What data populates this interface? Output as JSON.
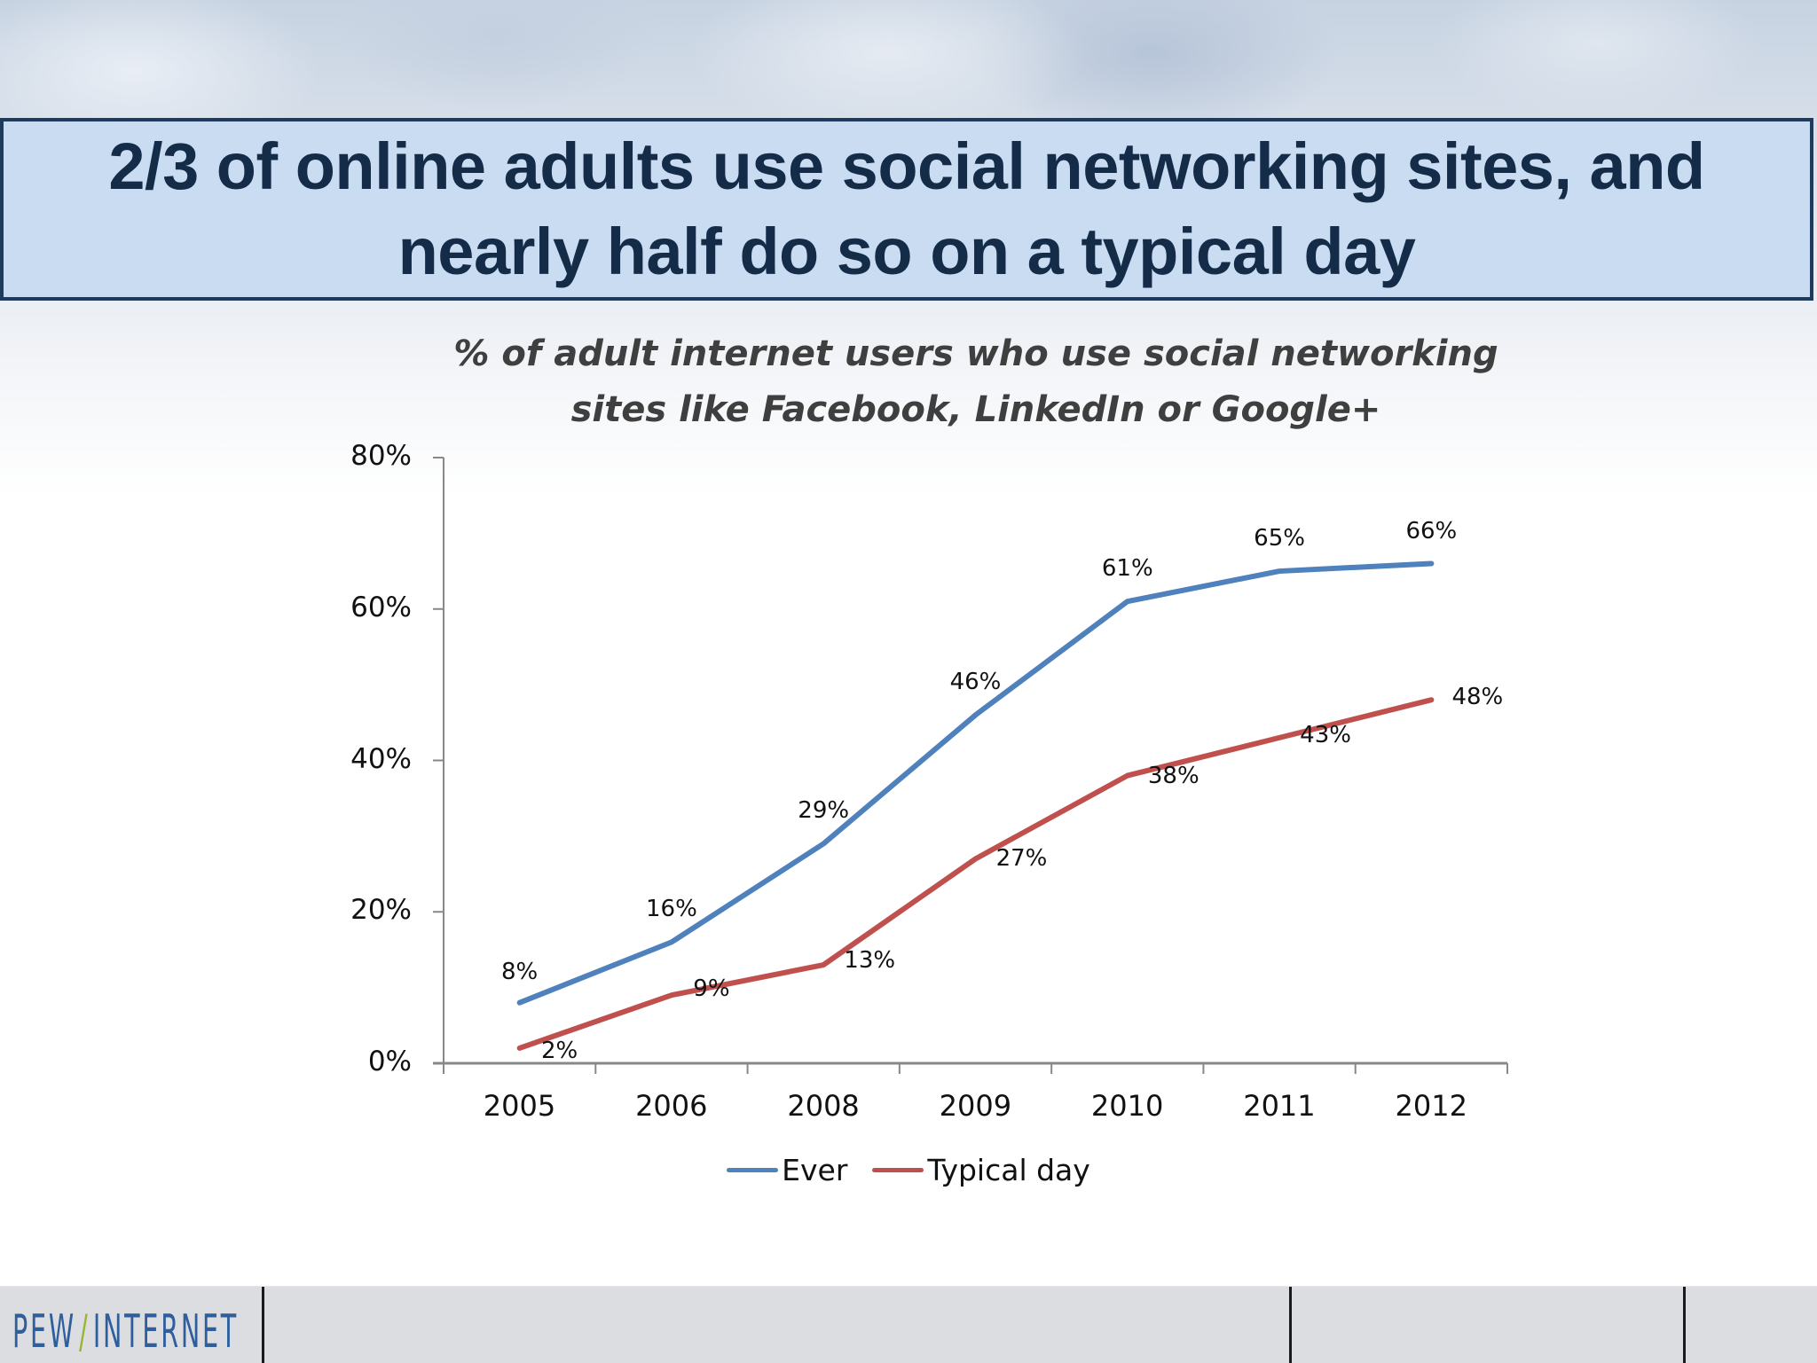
{
  "slide": {
    "title_lines": [
      "2/3 of online adults use social networking sites, and",
      "nearly half do so on a typical day"
    ],
    "subtitle_lines": [
      "% of adult internet users who use social networking",
      "sites like Facebook, LinkedIn or Google+"
    ],
    "footer": {
      "logo_left": "PEW",
      "logo_slash": "/",
      "logo_right": "INTERNET"
    }
  },
  "colors": {
    "ever": "#4f81bd",
    "typical_day": "#c0504d",
    "title_bg": "#c9dcf2",
    "title_border": "#1e3a5c",
    "title_text": "#142c48",
    "axis": "#888888"
  },
  "chart_data": {
    "type": "line",
    "title": "% of adult internet users who use social networking sites like Facebook, LinkedIn or Google+",
    "xlabel": "",
    "ylabel": "",
    "categories": [
      "2005",
      "2006",
      "2008",
      "2009",
      "2010",
      "2011",
      "2012"
    ],
    "series": [
      {
        "name": "Ever",
        "values": [
          8,
          16,
          29,
          46,
          61,
          65,
          66
        ],
        "labels": [
          "8%",
          "16%",
          "29%",
          "46%",
          "61%",
          "65%",
          "66%"
        ]
      },
      {
        "name": "Typical day",
        "values": [
          2,
          9,
          13,
          27,
          38,
          43,
          48
        ],
        "labels": [
          "2%",
          "9%",
          "13%",
          "27%",
          "38%",
          "43%",
          "48%"
        ]
      }
    ],
    "ylim": [
      0,
      80
    ],
    "yticks": [
      "0%",
      "20%",
      "40%",
      "60%",
      "80%"
    ],
    "grid": false,
    "legend_position": "bottom"
  }
}
